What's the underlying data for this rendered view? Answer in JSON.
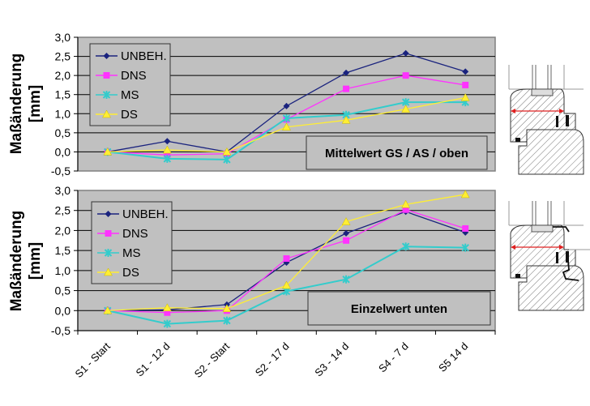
{
  "chart_data": [
    {
      "type": "line",
      "title": "",
      "annotation": "Mittelwert GS / AS / oben",
      "ylabel": "Maßänderung [mm]",
      "xlabel": "",
      "categories": [
        "S1 - Start",
        "S1 - 12 d",
        "S2 - Start",
        "S2 - 17 d",
        "S3 - 14 d",
        "S4 - 7 d",
        "S5 14 d"
      ],
      "ylim": [
        -0.5,
        3.0
      ],
      "yticks": [
        "3,0",
        "2,5",
        "2,0",
        "1,5",
        "1,0",
        "0,5",
        "0,0",
        "-0,5"
      ],
      "grid": true,
      "legend_position": "upper-left",
      "series": [
        {
          "name": "UNBEH.",
          "color": "#1a237e",
          "marker": "diamond",
          "values": [
            0.0,
            0.28,
            0.0,
            1.2,
            2.07,
            2.58,
            2.1
          ]
        },
        {
          "name": "DNS",
          "color": "#ff33ff",
          "marker": "square",
          "values": [
            0.0,
            -0.08,
            -0.05,
            0.85,
            1.65,
            2.0,
            1.75
          ]
        },
        {
          "name": "MS",
          "color": "#33cccc",
          "marker": "x",
          "values": [
            0.0,
            -0.18,
            -0.2,
            0.88,
            0.97,
            1.3,
            1.3
          ]
        },
        {
          "name": "DS",
          "color": "#ffee33",
          "marker": "triangle",
          "values": [
            0.0,
            0.05,
            0.0,
            0.65,
            0.83,
            1.12,
            1.42
          ]
        }
      ]
    },
    {
      "type": "line",
      "title": "",
      "annotation": "Einzelwert unten",
      "ylabel": "Maßänderung [mm]",
      "xlabel": "",
      "categories": [
        "S1 - Start",
        "S1 - 12 d",
        "S2 - Start",
        "S2 - 17 d",
        "S3 - 14 d",
        "S4 - 7 d",
        "S5 14 d"
      ],
      "ylim": [
        -0.5,
        3.0
      ],
      "yticks": [
        "3,0",
        "2,5",
        "2,0",
        "1,5",
        "1,0",
        "0,5",
        "0,0",
        "-0,5"
      ],
      "grid": true,
      "legend_position": "upper-left",
      "series": [
        {
          "name": "UNBEH.",
          "color": "#1a237e",
          "marker": "diamond",
          "values": [
            0.0,
            0.02,
            0.15,
            1.2,
            1.93,
            2.47,
            1.95
          ]
        },
        {
          "name": "DNS",
          "color": "#ff33ff",
          "marker": "square",
          "values": [
            0.0,
            -0.05,
            0.0,
            1.3,
            1.75,
            2.52,
            2.05
          ]
        },
        {
          "name": "MS",
          "color": "#33cccc",
          "marker": "x",
          "values": [
            0.0,
            -0.33,
            -0.25,
            0.48,
            0.78,
            1.6,
            1.57
          ]
        },
        {
          "name": "DS",
          "color": "#ffee33",
          "marker": "triangle",
          "values": [
            0.0,
            0.07,
            0.05,
            0.63,
            2.22,
            2.65,
            2.9
          ]
        }
      ]
    }
  ],
  "labels": {
    "ylabel_line1": "Maßänderung",
    "ylabel_line2": "[mm]",
    "top_note": "Mittelwert GS / AS / oben",
    "bottom_note": "Einzelwert unten"
  },
  "style": {
    "plot_bg": "#c0c0c0",
    "grid_color": "#000000",
    "frame_color": "#808080",
    "measure_arrow_color": "#e02020"
  },
  "figures": {
    "top_profile": "window-frame-cross-section-upper",
    "bottom_profile": "window-frame-cross-section-lower"
  }
}
